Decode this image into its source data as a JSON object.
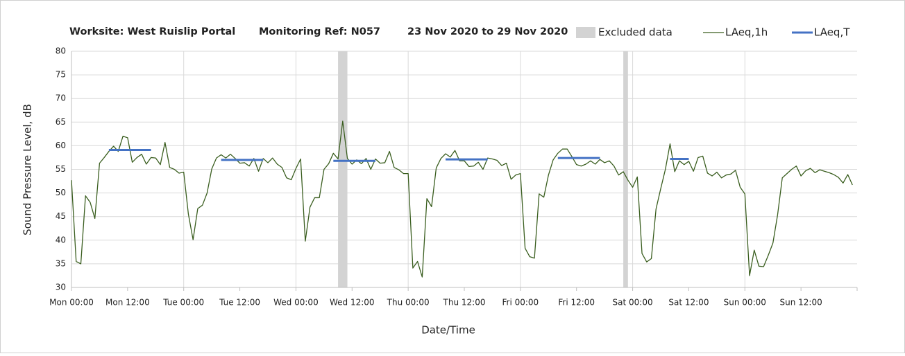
{
  "chart_data": {
    "type": "line",
    "title": [
      "Worksite: West Ruislip Portal",
      "Monitoring Ref: N057",
      "23 Nov 2020 to 29 Nov 2020"
    ],
    "ylabel": "Sound Pressure Level, dB",
    "xlabel": "Date/Time",
    "xlim": [
      0,
      168
    ],
    "ylim": [
      30,
      80
    ],
    "yticks": [
      30,
      35,
      40,
      45,
      50,
      55,
      60,
      65,
      70,
      75,
      80
    ],
    "xticks": [
      {
        "value": 0,
        "label": "Mon 00:00"
      },
      {
        "value": 12,
        "label": "Mon 12:00"
      },
      {
        "value": 24,
        "label": "Tue 00:00"
      },
      {
        "value": 36,
        "label": "Tue 12:00"
      },
      {
        "value": 48,
        "label": "Wed 00:00"
      },
      {
        "value": 60,
        "label": "Wed 12:00"
      },
      {
        "value": 72,
        "label": "Thu 00:00"
      },
      {
        "value": 84,
        "label": "Thu 12:00"
      },
      {
        "value": 96,
        "label": "Fri 00:00"
      },
      {
        "value": 108,
        "label": "Fri 12:00"
      },
      {
        "value": 120,
        "label": "Sat 00:00"
      },
      {
        "value": 132,
        "label": "Sat 12:00"
      },
      {
        "value": 144,
        "label": "Sun 00:00"
      },
      {
        "value": 156,
        "label": "Sun 12:00"
      }
    ],
    "grid": true,
    "excluded": {
      "name": "Excluded data",
      "color": "#d3d3d3",
      "ranges": [
        [
          57,
          59
        ],
        [
          118,
          119
        ]
      ]
    },
    "series": [
      {
        "name": "LAeq,1h",
        "color": "#3a5e1f",
        "x": [
          0,
          1,
          2,
          3,
          4,
          5,
          6,
          7,
          8,
          9,
          10,
          11,
          12,
          13,
          14,
          15,
          16,
          17,
          18,
          19,
          20,
          21,
          22,
          23,
          24,
          25,
          26,
          27,
          28,
          29,
          30,
          31,
          32,
          33,
          34,
          35,
          36,
          37,
          38,
          39,
          40,
          41,
          42,
          43,
          44,
          45,
          46,
          47,
          48,
          49,
          50,
          51,
          52,
          53,
          54,
          55,
          56,
          57,
          58,
          59,
          60,
          61,
          62,
          63,
          64,
          65,
          66,
          67,
          68,
          69,
          70,
          71,
          72,
          73,
          74,
          75,
          76,
          77,
          78,
          79,
          80,
          81,
          82,
          83,
          84,
          85,
          86,
          87,
          88,
          89,
          90,
          91,
          92,
          93,
          94,
          95,
          96,
          97,
          98,
          99,
          100,
          101,
          102,
          103,
          104,
          105,
          106,
          107,
          108,
          109,
          110,
          111,
          112,
          113,
          114,
          115,
          116,
          117,
          118,
          119,
          120,
          121,
          122,
          123,
          124,
          125,
          126,
          127,
          128,
          129,
          130,
          131,
          132,
          133,
          134,
          135,
          136,
          137,
          138,
          139,
          140,
          141,
          142,
          143,
          144,
          145,
          146,
          147,
          148,
          149,
          150,
          151,
          152,
          153,
          154,
          155,
          156,
          157,
          158,
          159,
          160,
          161,
          162,
          163,
          164,
          165,
          166,
          167
        ],
        "values": [
          52.7,
          35.5,
          35,
          49.4,
          48,
          44.6,
          56.3,
          57.5,
          58.8,
          59.9,
          58.8,
          62,
          61.7,
          56.5,
          57.5,
          58.2,
          56.1,
          57.5,
          57.4,
          56,
          60.7,
          55.4,
          55,
          54.2,
          54.4,
          45.5,
          40.1,
          46.7,
          47.4,
          50,
          55.1,
          57.4,
          58.1,
          57.4,
          58.2,
          57.3,
          56.3,
          56.4,
          55.7,
          57.3,
          54.6,
          57.3,
          56.4,
          57.4,
          56.1,
          55.4,
          53.2,
          52.8,
          55.2,
          57.2,
          39.8,
          47,
          49,
          49,
          55,
          56.2,
          58.4,
          57.2,
          65.2,
          57.3,
          56.1,
          57,
          56.2,
          57.3,
          55,
          57.2,
          56.3,
          56.4,
          58.8,
          55.4,
          54.9,
          54.1,
          54.1,
          34.1,
          35.5,
          32.2,
          48.8,
          47.1,
          55.3,
          57.3,
          58.3,
          57.6,
          59,
          56.8,
          56.8,
          55.6,
          55.7,
          56.5,
          55,
          57.4,
          57.2,
          56.9,
          55.8,
          56.3,
          52.9,
          53.8,
          54.1,
          38.3,
          36.5,
          36.2,
          49.8,
          49.1,
          53.8,
          57,
          58.4,
          59.3,
          59.3,
          57.7,
          56,
          55.7,
          56.1,
          56.8,
          56.1,
          57.1,
          56.4,
          56.8,
          55.7,
          53.8,
          54.5,
          52.7,
          51.2,
          53.4,
          37.2,
          35.4,
          36.1,
          46.6,
          50.9,
          55,
          60.4,
          54.5,
          56.8,
          56,
          56.7,
          54.6,
          57.5,
          57.8,
          54.2,
          53.6,
          54.4,
          53.2,
          53.8,
          54,
          54.8,
          51.2,
          49.8,
          32.5,
          37.9,
          34.5,
          34.4,
          36.8,
          39.4,
          45.4,
          53.2,
          54.1,
          55,
          55.7,
          53.6,
          54.7,
          55.2,
          54.3,
          54.9,
          54.6,
          54.3,
          53.9,
          53.3,
          52.1,
          53.9,
          51.7
        ]
      },
      {
        "name": "LAeq,T",
        "color": "#4472c4",
        "x": [
          8,
          17,
          null,
          32,
          41,
          null,
          56,
          65,
          null,
          80,
          89,
          null,
          104,
          113,
          null,
          128,
          132
        ],
        "values": [
          59.1,
          59.1,
          null,
          57,
          57,
          null,
          56.8,
          56.8,
          null,
          57.1,
          57.1,
          null,
          57.4,
          57.4,
          null,
          57.2,
          57.2
        ]
      }
    ]
  }
}
